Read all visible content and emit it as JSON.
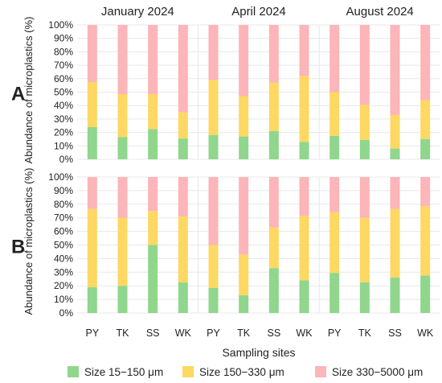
{
  "chart_data": {
    "type": "bar",
    "stacked": true,
    "normalized": true,
    "ylabel": "Abundance of microplastics (%)",
    "xlabel": "Sampling sites",
    "ylim": [
      0,
      100
    ],
    "yticks": [
      "0%",
      "10%",
      "20%",
      "30%",
      "40%",
      "50%",
      "60%",
      "70%",
      "80%",
      "90%",
      "100%"
    ],
    "periods": [
      "January 2024",
      "April 2024",
      "August 2024"
    ],
    "sites": [
      "PY",
      "TK",
      "SS",
      "WK"
    ],
    "series": [
      {
        "name": "Size 15−150 μm",
        "color": "#90d68d"
      },
      {
        "name": "Size 150−330 μm",
        "color": "#fdd862"
      },
      {
        "name": "Size 330−5000 μm",
        "color": "#fcb5b8"
      }
    ],
    "legend_position": "bottom",
    "grid": "horizontal",
    "panels": [
      {
        "label": "A",
        "small": [
          24,
          16.5,
          22.5,
          15.5,
          18,
          17,
          21,
          13,
          17.5,
          14.5,
          8,
          15
        ],
        "medium": [
          33.5,
          32,
          26,
          19.5,
          41,
          30,
          36,
          49,
          32.5,
          26,
          25,
          29
        ],
        "large": [
          42.5,
          51.5,
          51.5,
          65,
          41,
          53,
          43,
          38,
          50,
          59.5,
          67,
          56
        ]
      },
      {
        "label": "B",
        "small": [
          19,
          20,
          50,
          22.5,
          18.5,
          13,
          33,
          24,
          29.5,
          22.5,
          26,
          27.5
        ],
        "medium": [
          57.5,
          50,
          25,
          48.5,
          31.5,
          30,
          30,
          47.5,
          44.5,
          47.5,
          50.5,
          51
        ],
        "large": [
          23.5,
          30,
          25,
          29,
          50,
          57,
          37,
          28.5,
          26,
          30,
          23.5,
          21.5
        ]
      }
    ]
  }
}
